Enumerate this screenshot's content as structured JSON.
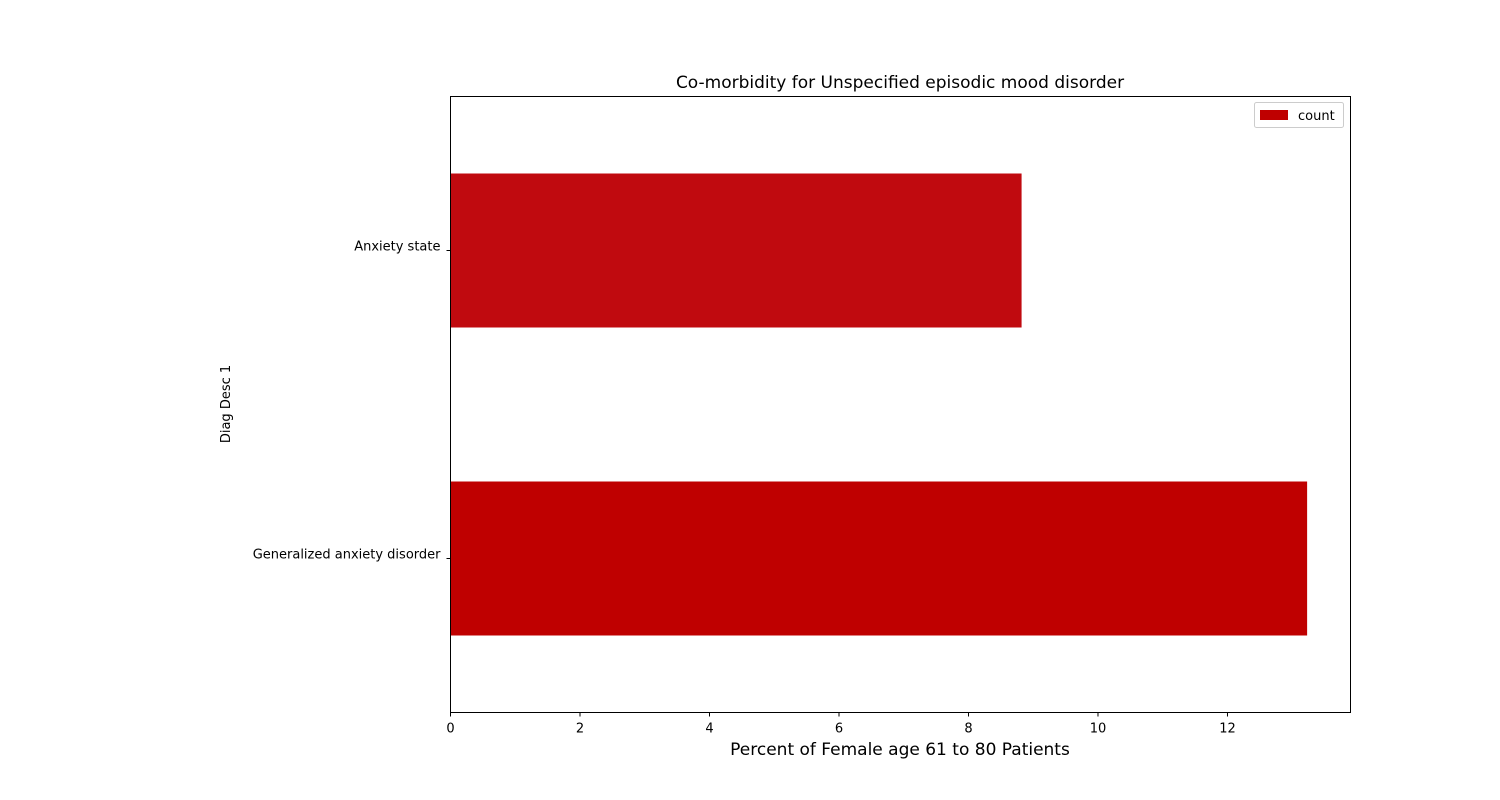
{
  "chart_data": {
    "type": "bar",
    "orientation": "horizontal",
    "title": "Co-morbidity for Unspecified episodic mood disorder",
    "xlabel": "Percent of Female age 61 to 80 Patients",
    "ylabel": "Diag Desc 1",
    "categories": [
      "Generalized anxiety disorder",
      "Anxiety state"
    ],
    "series": [
      {
        "name": "count",
        "values": [
          13.23,
          8.82
        ],
        "colors": [
          "#bf0000",
          "#c00a0f"
        ]
      }
    ],
    "xlim": [
      0,
      13.9
    ],
    "x_ticks": [
      0,
      2,
      4,
      6,
      8,
      10,
      12
    ],
    "grid": false,
    "legend_position": "top-right"
  }
}
